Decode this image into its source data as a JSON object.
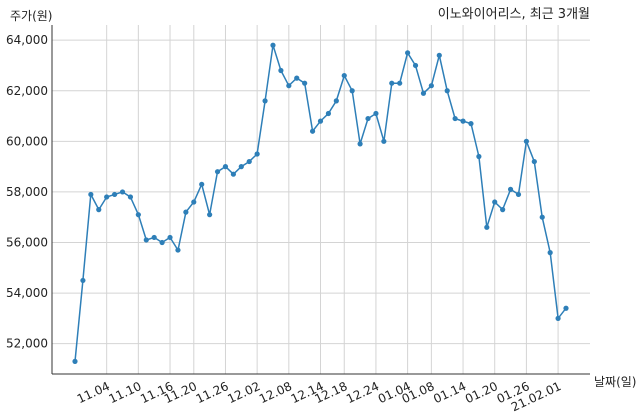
{
  "chart_data": {
    "type": "line",
    "title": "이노와이어리스, 최근 3개월",
    "ylabel": "주가(원)",
    "xlabel": "날짜(일)",
    "ylim": [
      50800,
      64600
    ],
    "yticks": [
      "52,000",
      "54,000",
      "56,000",
      "58,000",
      "60,000",
      "62,000",
      "64,000"
    ],
    "xticks": [
      "11.04",
      "11.10",
      "11.16",
      "11.20",
      "11.26",
      "12.02",
      "12.08",
      "12.14",
      "12.18",
      "12.24",
      "01.04",
      "01.08",
      "01.14",
      "01.20",
      "01.26",
      "21.02.01"
    ],
    "grid": true,
    "series": [
      {
        "color": "#2e7fb8",
        "values": [
          51300,
          54500,
          57900,
          57300,
          57800,
          57900,
          58000,
          57800,
          57100,
          56100,
          56200,
          56000,
          56200,
          55700,
          57200,
          57600,
          58300,
          57100,
          58800,
          59000,
          58700,
          59000,
          59200,
          59500,
          61600,
          63800,
          62800,
          62200,
          62500,
          62300,
          60400,
          60800,
          61100,
          61600,
          62600,
          62000,
          59900,
          60900,
          61100,
          60000,
          62300,
          62300,
          63500,
          63000,
          61900,
          62200,
          63400,
          62000,
          60900,
          60800,
          60700,
          59400,
          56600,
          57600,
          57300,
          58100,
          57900,
          60000,
          59200,
          57000,
          55600,
          53000,
          53400
        ]
      }
    ]
  }
}
